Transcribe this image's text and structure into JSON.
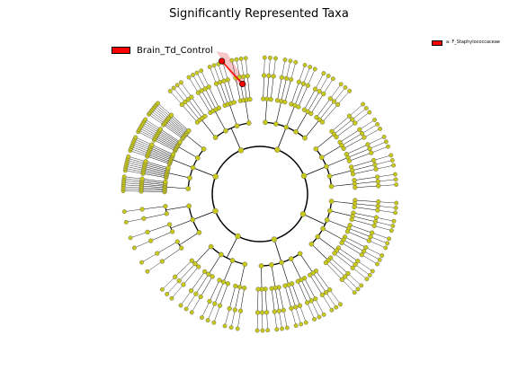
{
  "title": "Significantly Represented Taxa",
  "legend": {
    "group_label": "Brain_Td_Control",
    "group_color": "#ff0000",
    "clade_label": "a: F_Staphylococcaceae",
    "clade_color": "#ff0000"
  },
  "cladogram": {
    "node_color": "#c8c818",
    "highlight_color": "#ff0000",
    "highlight_shade": "#f6b8b8",
    "highlight_node": "a"
  }
}
